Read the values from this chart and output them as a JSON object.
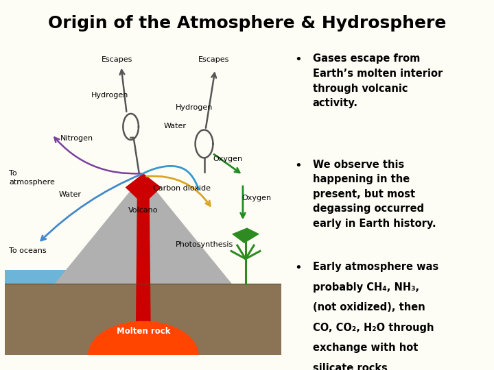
{
  "title": "Origin of the Atmosphere & Hydrosphere",
  "title_fontsize": 18,
  "title_fontweight": "bold",
  "bg_color": "#FDFDF5",
  "diagram_bg": "#F5E6A0",
  "bullet1": "Gases escape from\nEarth’s molten interior\nthrough volcanic\nactivity.",
  "bullet2": "We observe this\nhappening in the\npresent, but most\ndegassing occurred\nearly in Earth history.",
  "bullet3_line1": "Early atmosphere was",
  "bullet3_line2": "probably CH",
  "bullet3_ch4": "4",
  "bullet3_line2b": ", NH",
  "bullet3_nh3": "3",
  "bullet3_line2c": ",",
  "bullet3_line3": "(not oxidized), then",
  "bullet3_line4": "CO, CO",
  "bullet3_co2": "2",
  "bullet3_line4b": ", H",
  "bullet3_h2o_2": "2",
  "bullet3_line4c": "O through",
  "bullet3_line5": "exchange with hot",
  "bullet3_line6": "silicate rocks",
  "labels": {
    "escapes_left": "Escapes",
    "escapes_right": "Escapes",
    "hydrogen_left": "Hydrogen",
    "hydrogen_right": "Hydrogen",
    "water": "Water",
    "nitrogen": "Nitrogen",
    "water2": "Water",
    "to_atm": "To\natmosphere",
    "to_ocean": "To oceans",
    "carbon_dioxide": "Carbon dioxide",
    "oxygen_right": "Oxygen",
    "oxygen_bottom": "Oxygen",
    "photosynthesis": "Photosynthesis",
    "volcano": "Volcano",
    "molten_rock": "Molten rock"
  },
  "colors": {
    "ground": "#8B7355",
    "ocean": "#6CB4D8",
    "volcano_gray": "#B0B0B0",
    "lava_red": "#CC0000",
    "molten_orange": "#FF4500",
    "hydrogen_gray": "#555555",
    "water_blue": "#3399CC",
    "nitrogen_purple": "#7B3FA0",
    "co2_yellow": "#DAA520",
    "oxygen_green": "#228B22",
    "plant_green": "#2E8B22",
    "arrow_blue": "#4488CC"
  }
}
